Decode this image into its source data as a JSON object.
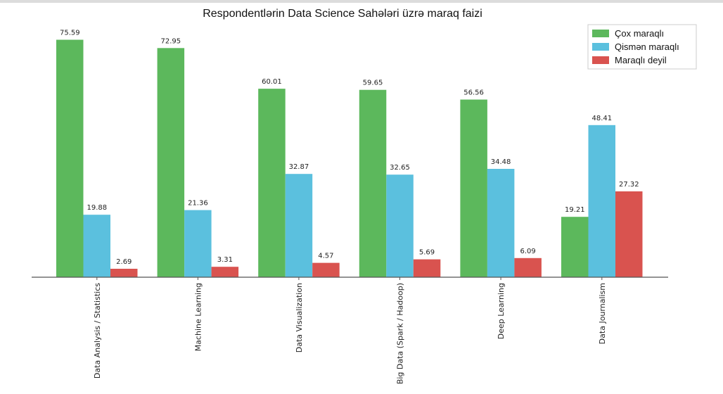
{
  "chart_data": {
    "type": "bar",
    "title": "Respondentlərin Data Science Sahələri üzrə maraq faizi",
    "xlabel": "",
    "ylabel": "",
    "ylim": [
      0,
      80
    ],
    "grid": false,
    "legend_position": "top-right",
    "categories": [
      "Data Analysis / Statistics",
      "Machine Learning",
      "Data Visualization",
      "Big Data (Spark / Hadoop)",
      "Deep Learning",
      "Data Journalism"
    ],
    "series": [
      {
        "name": "Çox maraqlı",
        "color": "#5cb85c",
        "values": [
          75.59,
          72.95,
          60.01,
          59.65,
          56.56,
          19.21
        ]
      },
      {
        "name": "Qismən maraqlı",
        "color": "#5bc0de",
        "values": [
          19.88,
          21.36,
          32.87,
          32.65,
          34.48,
          48.41
        ]
      },
      {
        "name": "Maraqlı deyil",
        "color": "#d9534f",
        "values": [
          2.69,
          3.31,
          4.57,
          5.69,
          6.09,
          27.32
        ]
      }
    ]
  }
}
